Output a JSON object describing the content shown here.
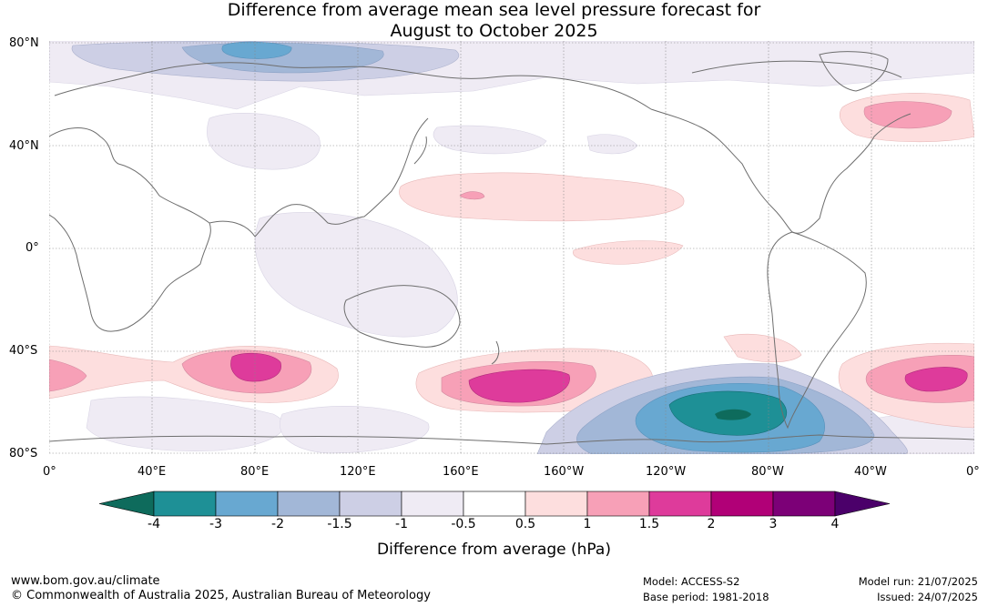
{
  "title": {
    "line1": "Difference from average mean sea level pressure forecast for",
    "line2": "August to October 2025"
  },
  "lat_ticks": [
    "80°N",
    "40°N",
    "0°",
    "40°S",
    "80°S"
  ],
  "lon_ticks": [
    "0°",
    "40°E",
    "80°E",
    "120°E",
    "160°E",
    "160°W",
    "120°W",
    "80°W",
    "40°W",
    "0°"
  ],
  "colorbar": {
    "title": "Difference from average (hPa)",
    "tick_labels": [
      "-4",
      "-3",
      "-2",
      "-1.5",
      "-1",
      "-0.5",
      "0.5",
      "1",
      "1.5",
      "2",
      "3",
      "4"
    ],
    "colors": [
      "#0e6b5c",
      "#1e9096",
      "#68a8d1",
      "#a2b7d7",
      "#cdcfe5",
      "#efebf4",
      "#ffffff",
      "#fddede",
      "#f7a0b7",
      "#de3b9b",
      "#b10077",
      "#7c0077",
      "#4b006a"
    ]
  },
  "map_colors": {
    "neg_strong": "#1e9096",
    "neg_med": "#68a8d1",
    "neg_light": "#a2b7d7",
    "neg_lighter": "#cdcfe5",
    "neg_faint": "#efebf4",
    "pos_faint": "#fddede",
    "pos_light": "#f7a0b7",
    "pos_med": "#de3b9b",
    "pos_strong": "#b10077",
    "coast": "#6e6e6e",
    "grid": "#888888"
  },
  "footer": {
    "url": "www.bom.gov.au/climate",
    "copyright": "© Commonwealth of Australia 2025, Australian Bureau of Meteorology",
    "model": "Model: ACCESS-S2",
    "base_period": "Base period: 1981-2018",
    "model_run": "Model run: 21/07/2025",
    "issued": "Issued: 24/07/2025"
  }
}
